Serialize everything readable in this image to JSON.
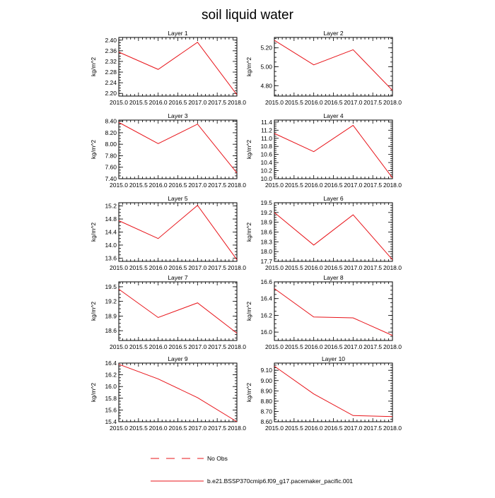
{
  "page_title": "soil liquid water",
  "series_color": "#e8141a",
  "legend": [
    {
      "label": "No Obs",
      "style": "dashed"
    },
    {
      "label": "b.e21.BSSP370cmip6.f09_g17.pacemaker_pacific.001",
      "style": "solid"
    }
  ],
  "chart_data": [
    {
      "type": "line",
      "title": "Layer 1",
      "ylabel": "kg/m^2",
      "x": [
        2015,
        2016,
        2017,
        2018
      ],
      "y": [
        2.355,
        2.29,
        2.392,
        2.195
      ],
      "ylim": [
        2.19,
        2.41
      ],
      "yticks": [
        2.2,
        2.24,
        2.28,
        2.32,
        2.36,
        2.4
      ],
      "yticklabels": [
        "2.20",
        "2.24",
        "2.28",
        "2.32",
        "2.36",
        "2.40"
      ],
      "xticklabels": [
        "2015.0",
        "2015.5",
        "2016.0",
        "2016.5",
        "2017.0",
        "2017.5",
        "2018.0"
      ]
    },
    {
      "type": "line",
      "title": "Layer 2",
      "ylabel": "kg/m^2",
      "x": [
        2015,
        2016,
        2017,
        2018
      ],
      "y": [
        5.28,
        5.02,
        5.18,
        4.75
      ],
      "ylim": [
        4.69,
        5.31
      ],
      "yticks": [
        4.8,
        5.0,
        5.2
      ],
      "yticklabels": [
        "4.80",
        "5.00",
        "5.20"
      ],
      "xticklabels": [
        "2015.0",
        "2015.5",
        "2016.0",
        "2016.5",
        "2017.0",
        "2017.5",
        "2018.0"
      ]
    },
    {
      "type": "line",
      "title": "Layer 3",
      "ylabel": "kg/m^2",
      "x": [
        2015,
        2016,
        2017,
        2018
      ],
      "y": [
        8.38,
        8.01,
        8.35,
        7.5
      ],
      "ylim": [
        7.4,
        8.42
      ],
      "yticks": [
        7.4,
        7.6,
        7.8,
        8.0,
        8.2,
        8.4
      ],
      "yticklabels": [
        "7.40",
        "7.60",
        "7.80",
        "8.00",
        "8.20",
        "8.40"
      ],
      "xticklabels": [
        "2015.0",
        "2015.5",
        "2016.0",
        "2016.5",
        "2017.0",
        "2017.5",
        "2018.0"
      ]
    },
    {
      "type": "line",
      "title": "Layer 4",
      "ylabel": "kg/m^2",
      "x": [
        2015,
        2016,
        2017,
        2018
      ],
      "y": [
        11.12,
        10.67,
        11.32,
        10.02
      ],
      "ylim": [
        10.0,
        11.45
      ],
      "yticks": [
        10.0,
        10.2,
        10.4,
        10.6,
        10.8,
        11.0,
        11.2,
        11.4
      ],
      "yticklabels": [
        "10.0",
        "10.2",
        "10.4",
        "10.6",
        "10.8",
        "11.0",
        "11.2",
        "11.4"
      ],
      "xticklabels": [
        "2015.0",
        "2015.5",
        "2016.0",
        "2016.5",
        "2017.0",
        "2017.5",
        "2018.0"
      ]
    },
    {
      "type": "line",
      "title": "Layer 5",
      "ylabel": "kg/m^2",
      "x": [
        2015,
        2016,
        2017,
        2018
      ],
      "y": [
        14.75,
        14.2,
        15.22,
        13.55
      ],
      "ylim": [
        13.5,
        15.3
      ],
      "yticks": [
        13.6,
        14.0,
        14.4,
        14.8,
        15.2
      ],
      "yticklabels": [
        "13.6",
        "14.0",
        "14.4",
        "14.8",
        "15.2"
      ],
      "xticklabels": [
        "2015.0",
        "2015.5",
        "2016.0",
        "2016.5",
        "2017.0",
        "2017.5",
        "2018.0"
      ]
    },
    {
      "type": "line",
      "title": "Layer 6",
      "ylabel": "kg/m^2",
      "x": [
        2015,
        2016,
        2017,
        2018
      ],
      "y": [
        19.2,
        18.2,
        19.13,
        17.75
      ],
      "ylim": [
        17.7,
        19.5
      ],
      "yticks": [
        17.7,
        18.0,
        18.3,
        18.6,
        18.9,
        19.2,
        19.5
      ],
      "yticklabels": [
        "17.7",
        "18.0",
        "18.3",
        "18.6",
        "18.9",
        "19.2",
        "19.5"
      ],
      "xticklabels": [
        "2015.0",
        "2015.5",
        "2016.0",
        "2016.5",
        "2017.0",
        "2017.5",
        "2018.0"
      ]
    },
    {
      "type": "line",
      "title": "Layer 7",
      "ylabel": "kg/m^2",
      "x": [
        2015,
        2016,
        2017,
        2018
      ],
      "y": [
        19.45,
        18.87,
        19.17,
        18.55
      ],
      "ylim": [
        18.4,
        19.6
      ],
      "yticks": [
        18.6,
        18.9,
        19.2,
        19.5
      ],
      "yticklabels": [
        "18.6",
        "18.9",
        "19.2",
        "19.5"
      ],
      "xticklabels": [
        "2015.0",
        "2015.5",
        "2016.0",
        "2016.5",
        "2017.0",
        "2017.5",
        "2018.0"
      ]
    },
    {
      "type": "line",
      "title": "Layer 8",
      "ylabel": "kg/m^2",
      "x": [
        2015,
        2016,
        2017,
        2018
      ],
      "y": [
        16.52,
        16.18,
        16.17,
        15.96
      ],
      "ylim": [
        15.9,
        16.6
      ],
      "yticks": [
        16.0,
        16.2,
        16.4,
        16.6
      ],
      "yticklabels": [
        "16.0",
        "16.2",
        "16.4",
        "16.6"
      ],
      "xticklabels": [
        "2015.0",
        "2015.5",
        "2016.0",
        "2016.5",
        "2017.0",
        "2017.5",
        "2018.0"
      ]
    },
    {
      "type": "line",
      "title": "Layer 9",
      "ylabel": "kg/m^2",
      "x": [
        2015,
        2016,
        2017,
        2018
      ],
      "y": [
        16.38,
        16.13,
        15.81,
        15.4
      ],
      "ylim": [
        15.4,
        16.4
      ],
      "yticks": [
        15.4,
        15.6,
        15.8,
        16.0,
        16.2,
        16.4
      ],
      "yticklabels": [
        "15.4",
        "15.6",
        "15.8",
        "16.0",
        "16.2",
        "16.4"
      ],
      "xticklabels": [
        "2015.0",
        "2015.5",
        "2016.0",
        "2016.5",
        "2017.0",
        "2017.5",
        "2018.0"
      ]
    },
    {
      "type": "line",
      "title": "Layer 10",
      "ylabel": "kg/m^2",
      "x": [
        2015,
        2016,
        2017,
        2018
      ],
      "y": [
        9.14,
        8.87,
        8.66,
        8.65
      ],
      "ylim": [
        8.6,
        9.17
      ],
      "yticks": [
        8.6,
        8.7,
        8.8,
        8.9,
        9.0,
        9.1
      ],
      "yticklabels": [
        "8.60",
        "8.70",
        "8.80",
        "8.90",
        "9.00",
        "9.10"
      ],
      "xticklabels": [
        "2015.0",
        "2015.5",
        "2016.0",
        "2016.5",
        "2017.0",
        "2017.5",
        "2018.0"
      ]
    }
  ]
}
